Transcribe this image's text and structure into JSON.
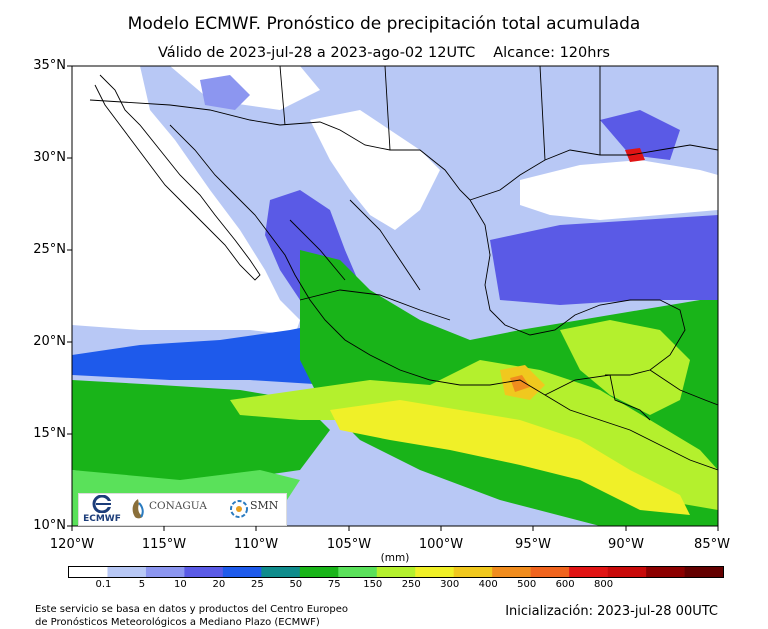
{
  "title": "Modelo ECMWF. Pronóstico de precipitación total acumulada",
  "subtitle_valid": "Válido de 2023-jul-28 a 2023-ago-02 12UTC",
  "subtitle_range": "Alcance: 120hrs",
  "map": {
    "lat_labels": [
      "35°N",
      "30°N",
      "25°N",
      "20°N",
      "15°N",
      "10°N"
    ],
    "lon_labels": [
      "120°W",
      "115°W",
      "110°W",
      "105°W",
      "100°W",
      "95°W",
      "90°W",
      "85°W"
    ],
    "extent": {
      "lon_min": -120,
      "lon_max": -85,
      "lat_min": 10,
      "lat_max": 35
    }
  },
  "colorbar": {
    "unit": "(mm)",
    "labels": [
      "0.1",
      "5",
      "10",
      "20",
      "25",
      "50",
      "75",
      "150",
      "250",
      "300",
      "400",
      "500",
      "600",
      "800"
    ],
    "colors": [
      "#ffffff",
      "#b8c8f5",
      "#8c96f0",
      "#5a5ae6",
      "#1e5aeb",
      "#0f8c8c",
      "#19b419",
      "#5ae15a",
      "#b4f02d",
      "#f0f028",
      "#f0c81e",
      "#f08c1e",
      "#f0641e",
      "#e11414",
      "#c80a0a",
      "#8c0000",
      "#640000"
    ]
  },
  "logos": {
    "ecmwf_text": "ECMWF",
    "conagua_text": "CONAGUA",
    "smn_text": "SMN"
  },
  "footer": {
    "credit_line1": "Este servicio se basa en datos y productos del Centro Europeo",
    "credit_line2": "de Pronósticos Meteorológicos a Mediano Plazo (ECMWF)",
    "init": "Inicialización: 2023-jul-28 00UTC"
  }
}
